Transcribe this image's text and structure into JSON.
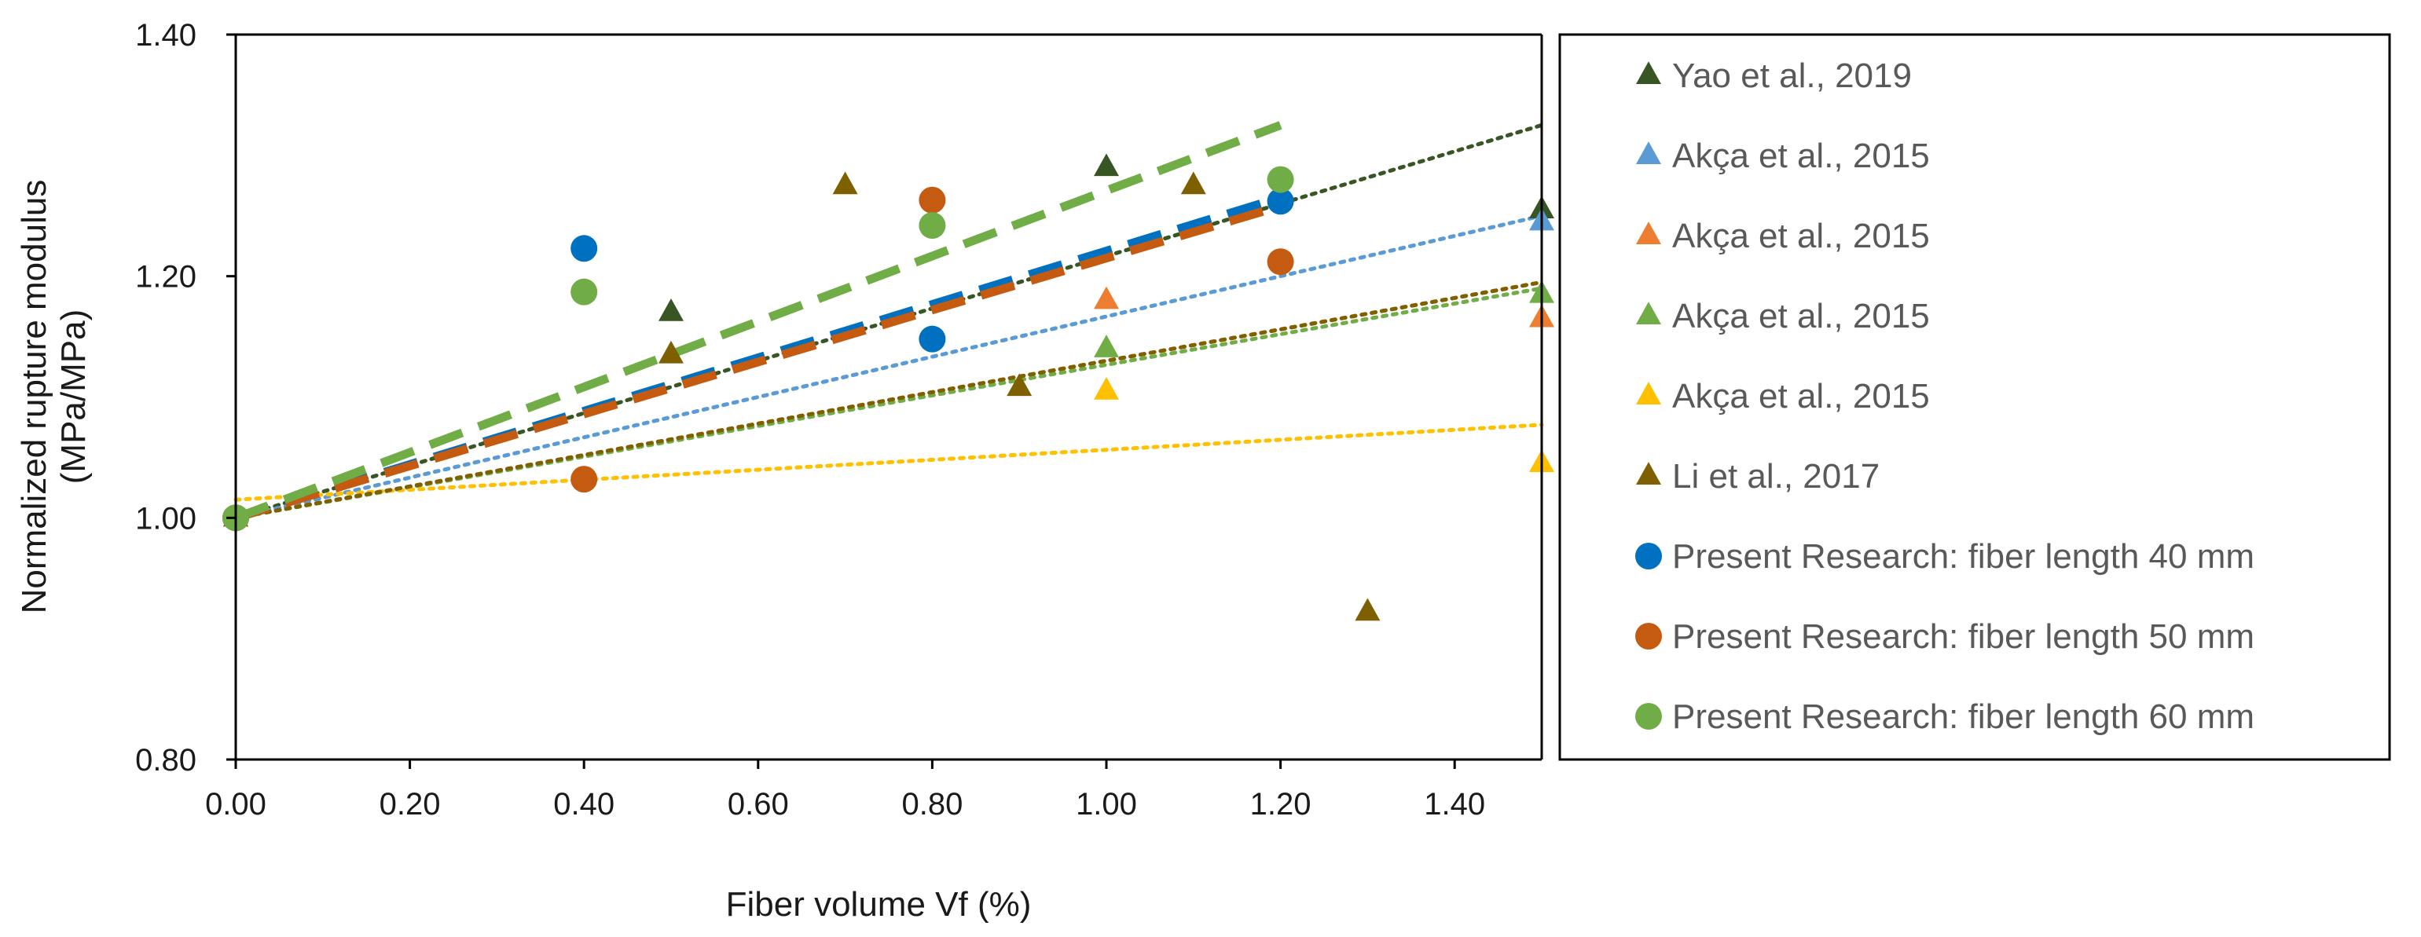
{
  "chart_data": {
    "type": "scatter",
    "xlabel": "Fiber volume Vf (%)",
    "ylabel_lines": [
      "Normalized rupture modulus",
      "(MPa/MPa)"
    ],
    "xlim": [
      0,
      1.5
    ],
    "ylim": [
      0.8,
      1.4
    ],
    "x_ticks": [
      "0.00",
      "0.20",
      "0.40",
      "0.60",
      "0.80",
      "1.00",
      "1.20",
      "1.40"
    ],
    "y_ticks": [
      "0.80",
      "1.00",
      "1.20",
      "1.40"
    ],
    "grid": false,
    "legend_position": "right",
    "series": [
      {
        "name": "Yao et al., 2019",
        "marker": "triangle",
        "color": "#375623",
        "points": [
          [
            0,
            1.0
          ],
          [
            0.5,
            1.17
          ],
          [
            1.0,
            1.29
          ],
          [
            1.5,
            1.255
          ]
        ],
        "trend": {
          "style": "dotted",
          "from": [
            0,
            1.0
          ],
          "to": [
            1.5,
            1.325
          ]
        }
      },
      {
        "name": "Akça et al., 2015",
        "marker": "triangle",
        "color": "#5B9BD5",
        "points": [
          [
            0,
            1.0
          ],
          [
            1.5,
            1.245
          ]
        ],
        "trend": {
          "style": "dotted",
          "from": [
            0,
            1.0
          ],
          "to": [
            1.5,
            1.25
          ]
        }
      },
      {
        "name": "Akça et al., 2015",
        "marker": "triangle",
        "color": "#ED7D31",
        "points": [
          [
            0,
            1.0
          ],
          [
            1.0,
            1.18
          ],
          [
            1.5,
            1.165
          ]
        ],
        "trend": {
          "style": "dotted",
          "from": [
            0,
            1.0
          ],
          "to": [
            1.5,
            1.195
          ]
        }
      },
      {
        "name": "Akça et al., 2015",
        "marker": "triangle",
        "color": "#70AD47",
        "points": [
          [
            0,
            1.0
          ],
          [
            1.0,
            1.14
          ],
          [
            1.5,
            1.185
          ]
        ],
        "trend": {
          "style": "dotted",
          "from": [
            0,
            1.0
          ],
          "to": [
            1.5,
            1.19
          ]
        }
      },
      {
        "name": "Akça et al., 2015",
        "marker": "triangle",
        "color": "#FFC000",
        "points": [
          [
            0,
            1.0
          ],
          [
            1.0,
            1.105
          ],
          [
            1.5,
            1.045
          ]
        ],
        "trend": {
          "style": "dotted",
          "from": [
            0,
            1.015
          ],
          "to": [
            1.5,
            1.077
          ]
        }
      },
      {
        "name": "Li et al., 2017",
        "marker": "triangle",
        "color": "#7F6000",
        "points": [
          [
            0,
            1.0
          ],
          [
            0.5,
            1.135
          ],
          [
            0.7,
            1.275
          ],
          [
            0.9,
            1.108
          ],
          [
            1.1,
            1.275
          ],
          [
            1.3,
            0.922
          ]
        ],
        "trend": {
          "style": "dotted",
          "from": [
            0,
            1.0
          ],
          "to": [
            1.5,
            1.195
          ]
        }
      },
      {
        "name": "Present Research: fiber length 40 mm",
        "marker": "circle",
        "color": "#0070C0",
        "points": [
          [
            0,
            1.0
          ],
          [
            0.4,
            1.223
          ],
          [
            0.8,
            1.148
          ],
          [
            1.2,
            1.262
          ]
        ],
        "trend": {
          "style": "dashed",
          "from": [
            0,
            1.0
          ],
          "to": [
            1.2,
            1.265
          ]
        }
      },
      {
        "name": "Present Research: fiber length 50 mm",
        "marker": "circle",
        "color": "#C55A11",
        "points": [
          [
            0,
            1.0
          ],
          [
            0.4,
            1.032
          ],
          [
            0.8,
            1.263
          ],
          [
            1.2,
            1.212
          ]
        ],
        "trend": {
          "style": "dashed",
          "from": [
            0,
            1.0
          ],
          "to": [
            1.2,
            1.258
          ]
        }
      },
      {
        "name": "Present Research: fiber length 60 mm",
        "marker": "circle",
        "color": "#70AD47",
        "points": [
          [
            0,
            1.0
          ],
          [
            0.4,
            1.187
          ],
          [
            0.8,
            1.242
          ],
          [
            1.2,
            1.28
          ]
        ],
        "trend": {
          "style": "dashed",
          "from": [
            0,
            1.0
          ],
          "to": [
            1.2,
            1.325
          ]
        }
      }
    ]
  }
}
